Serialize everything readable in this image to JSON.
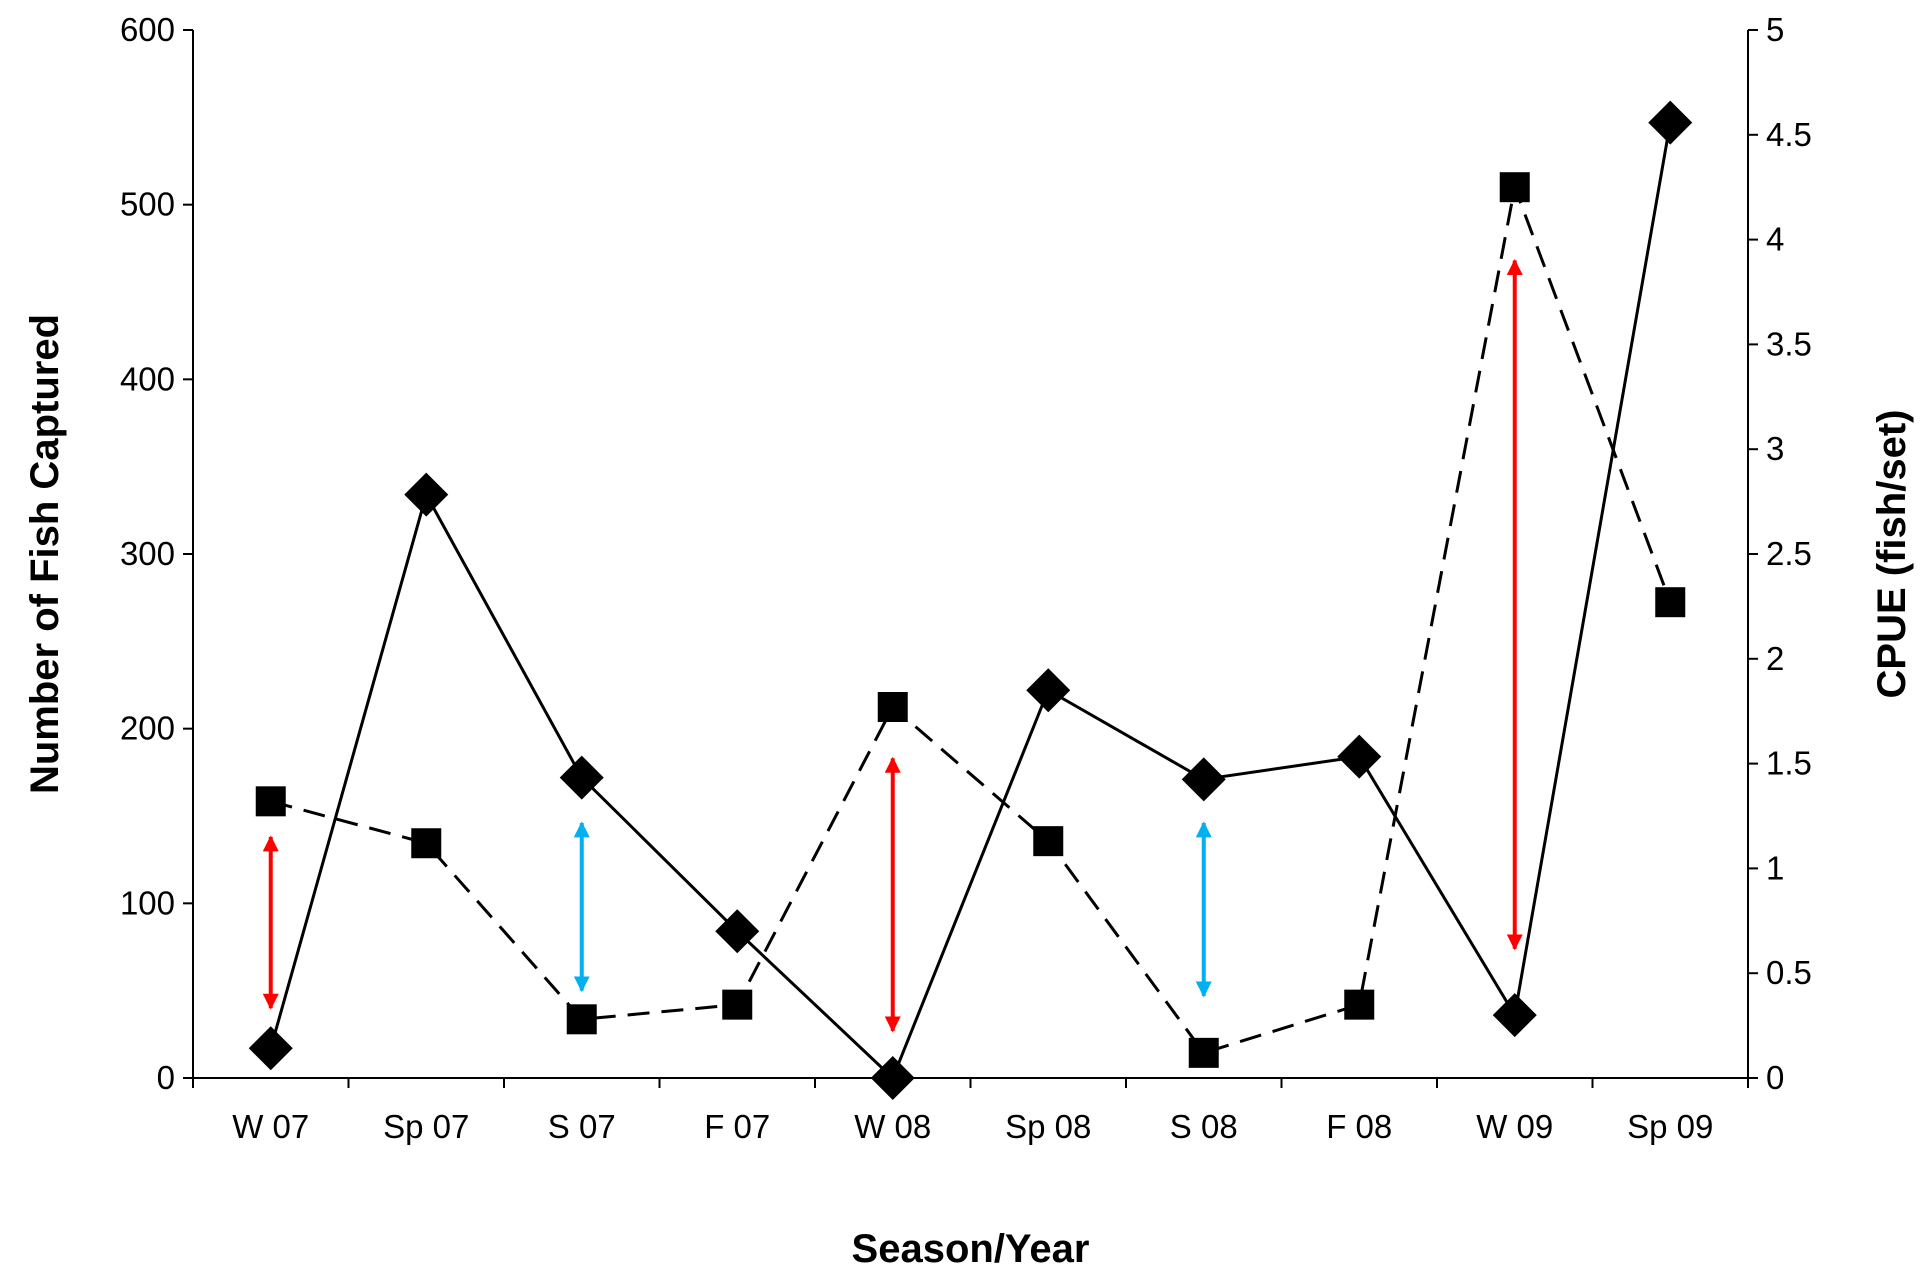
{
  "chart_data": {
    "type": "line",
    "title": "",
    "xlabel": "Season/Year",
    "ylabel": "Number of Fish Captured",
    "y2label": "CPUE (fish/set)",
    "categories": [
      "W 07",
      "Sp 07",
      "S 07",
      "F 07",
      "W 08",
      "Sp 08",
      "S 08",
      "F 08",
      "W 09",
      "Sp 09"
    ],
    "ylim": [
      0,
      600
    ],
    "y2lim": [
      0,
      5
    ],
    "yticks": [
      "0",
      "100",
      "200",
      "300",
      "400",
      "500",
      "600"
    ],
    "y2ticks": [
      "0",
      "0.5",
      "1",
      "1.5",
      "2",
      "2.5",
      "3",
      "3.5",
      "4",
      "4.5",
      "5"
    ],
    "grid": false,
    "legend": "none",
    "series": [
      {
        "axis": "left",
        "marker": "diamond",
        "line_style": "solid",
        "color": "#000000",
        "values": [
          17,
          334,
          172,
          84,
          0,
          222,
          171,
          184,
          36,
          547
        ]
      },
      {
        "axis": "right",
        "marker": "square",
        "line_style": "dashed",
        "color": "#000000",
        "values": [
          1.32,
          1.12,
          0.28,
          0.35,
          1.77,
          1.13,
          0.12,
          0.35,
          4.25,
          2.27
        ]
      }
    ],
    "annotations": [
      {
        "type": "double-arrow",
        "category": "W 07",
        "color": "#ff0000",
        "from": 40,
        "to": 138
      },
      {
        "type": "double-arrow",
        "category": "S 07",
        "color": "#00b0f0",
        "from": 50,
        "to": 146
      },
      {
        "type": "double-arrow",
        "category": "W 08",
        "color": "#ff0000",
        "from": 27,
        "to": 183
      },
      {
        "type": "double-arrow",
        "category": "S 08",
        "color": "#00b0f0",
        "from": 47,
        "to": 146
      },
      {
        "type": "double-arrow",
        "category": "W 09",
        "color": "#ff0000",
        "from": 74,
        "to": 468
      }
    ]
  }
}
